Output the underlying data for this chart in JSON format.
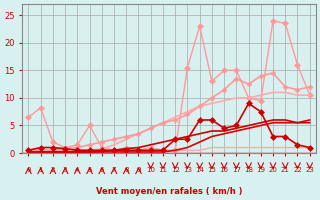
{
  "bg_color": "#d8f0ef",
  "grid_color": "#aaaaaa",
  "xlabel": "Vent moyen/en rafales ( km/h )",
  "ylabel_left": "",
  "xlim": [
    0,
    23
  ],
  "ylim": [
    0,
    27
  ],
  "yticks": [
    0,
    5,
    10,
    15,
    20,
    25
  ],
  "xticks": [
    0,
    1,
    2,
    3,
    4,
    5,
    6,
    7,
    8,
    9,
    10,
    11,
    12,
    13,
    14,
    15,
    16,
    17,
    18,
    19,
    20,
    21,
    22,
    23
  ],
  "lines_light": [
    {
      "x": [
        0,
        1,
        2,
        3,
        4,
        5,
        6,
        7,
        8,
        9,
        10,
        11,
        12,
        13,
        14,
        15,
        16,
        17,
        18,
        19,
        20,
        21,
        22,
        23
      ],
      "y": [
        6.5,
        8.2,
        2.0,
        1.0,
        1.5,
        5.0,
        1.0,
        0.5,
        1.0,
        0.5,
        1.0,
        0.5,
        0.5,
        15.5,
        23.0,
        13.0,
        15.0,
        15.0,
        10.0,
        9.5,
        24.0,
        23.5,
        16.0,
        10.5
      ],
      "color": "#ff9999",
      "lw": 1.0,
      "marker": "D",
      "ms": 3
    },
    {
      "x": [
        0,
        1,
        2,
        3,
        4,
        5,
        6,
        7,
        8,
        9,
        10,
        11,
        12,
        13,
        14,
        15,
        16,
        17,
        18,
        19,
        20,
        21,
        22,
        23
      ],
      "y": [
        0.5,
        0.5,
        0.5,
        0.5,
        0.5,
        0.5,
        0.5,
        0.5,
        0.5,
        0.5,
        0.5,
        0.5,
        0.5,
        0.5,
        0.5,
        1.0,
        1.0,
        1.0,
        1.0,
        1.0,
        1.0,
        1.0,
        1.0,
        1.0
      ],
      "color": "#ffaaaa",
      "lw": 1.0,
      "marker": null,
      "ms": 0
    },
    {
      "x": [
        0,
        1,
        2,
        3,
        4,
        5,
        6,
        7,
        8,
        9,
        10,
        11,
        12,
        13,
        14,
        15,
        16,
        17,
        18,
        19,
        20,
        21,
        22,
        23
      ],
      "y": [
        0.3,
        0.3,
        0.3,
        0.5,
        0.5,
        0.5,
        0.7,
        1.5,
        2.5,
        3.5,
        4.5,
        5.5,
        6.5,
        7.5,
        8.5,
        9.0,
        9.5,
        10.0,
        10.0,
        10.5,
        11.0,
        11.0,
        10.5,
        10.5
      ],
      "color": "#ffaaaa",
      "lw": 1.2,
      "marker": null,
      "ms": 0
    },
    {
      "x": [
        0,
        1,
        2,
        3,
        4,
        5,
        6,
        7,
        8,
        9,
        10,
        11,
        12,
        13,
        14,
        15,
        16,
        17,
        18,
        19,
        20,
        21,
        22,
        23
      ],
      "y": [
        0.3,
        0.5,
        0.5,
        0.8,
        1.0,
        1.5,
        2.0,
        2.5,
        3.0,
        3.5,
        4.5,
        5.5,
        6.0,
        7.0,
        8.5,
        10.0,
        11.5,
        13.5,
        12.5,
        14.0,
        14.5,
        12.0,
        11.5,
        12.0
      ],
      "color": "#ff9999",
      "lw": 1.2,
      "marker": "D",
      "ms": 2.5
    }
  ],
  "lines_dark": [
    {
      "x": [
        0,
        1,
        2,
        3,
        4,
        5,
        6,
        7,
        8,
        9,
        10,
        11,
        12,
        13,
        14,
        15,
        16,
        17,
        18,
        19,
        20,
        21,
        22,
        23
      ],
      "y": [
        0.5,
        1.0,
        1.0,
        0.8,
        0.5,
        0.5,
        0.5,
        0.5,
        0.5,
        0.5,
        0.5,
        0.5,
        2.5,
        2.5,
        6.0,
        6.0,
        4.5,
        5.0,
        9.0,
        7.5,
        3.0,
        3.0,
        1.5,
        1.0
      ],
      "color": "#cc0000",
      "lw": 1.2,
      "marker": "D",
      "ms": 3
    },
    {
      "x": [
        0,
        1,
        2,
        3,
        4,
        5,
        6,
        7,
        8,
        9,
        10,
        11,
        12,
        13,
        14,
        15,
        16,
        17,
        18,
        19,
        20,
        21,
        22,
        23
      ],
      "y": [
        0.2,
        0.2,
        0.2,
        0.2,
        0.2,
        0.2,
        0.2,
        0.2,
        0.2,
        0.2,
        0.2,
        0.2,
        0.5,
        1.0,
        2.0,
        3.0,
        3.5,
        4.0,
        4.5,
        5.0,
        5.5,
        5.5,
        5.5,
        6.0
      ],
      "color": "#dd0000",
      "lw": 1.2,
      "marker": null,
      "ms": 0
    },
    {
      "x": [
        0,
        1,
        2,
        3,
        4,
        5,
        6,
        7,
        8,
        9,
        10,
        11,
        12,
        13,
        14,
        15,
        16,
        17,
        18,
        19,
        20,
        21,
        22,
        23
      ],
      "y": [
        0.2,
        0.2,
        0.2,
        0.2,
        0.2,
        0.2,
        0.3,
        0.5,
        0.8,
        1.0,
        1.5,
        2.0,
        2.5,
        3.0,
        3.5,
        4.0,
        4.0,
        4.5,
        5.0,
        5.5,
        6.0,
        6.0,
        5.5,
        5.5
      ],
      "color": "#cc0000",
      "lw": 1.2,
      "marker": null,
      "ms": 0
    }
  ],
  "wind_arrows": {
    "x": [
      0,
      1,
      2,
      3,
      4,
      5,
      6,
      7,
      8,
      9,
      10,
      11,
      12,
      13,
      14,
      15,
      16,
      17,
      18,
      19,
      20,
      21,
      22,
      23
    ],
    "up": [
      1,
      1,
      1,
      1,
      1,
      1,
      1,
      1,
      1,
      1,
      0,
      0,
      0,
      0,
      0,
      0,
      0,
      0,
      0,
      0,
      0,
      0,
      0,
      0
    ],
    "color": "#cc0000"
  }
}
